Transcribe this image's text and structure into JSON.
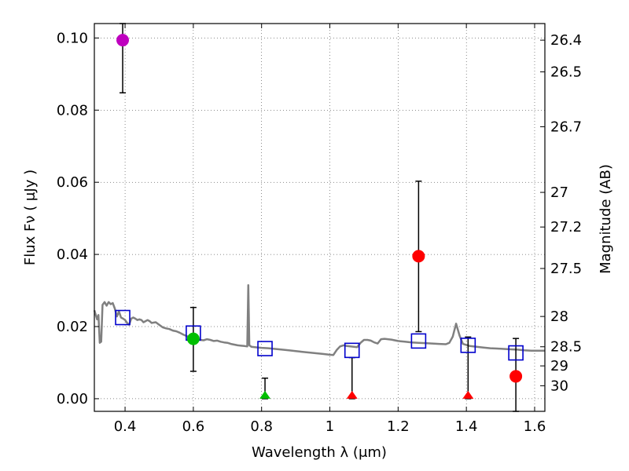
{
  "chart_data": {
    "type": "scatter",
    "xlabel": "Wavelength  λ (μm)",
    "ylabel": "Flux  Fν  ( μJy )",
    "y2label": "Magnitude (AB)",
    "xlim": [
      0.31,
      1.63
    ],
    "ylim": [
      -0.0035,
      0.104
    ],
    "grid": true,
    "x_ticks": [
      0.4,
      0.6,
      0.8,
      1.0,
      1.2,
      1.4,
      1.6
    ],
    "x_tick_labels": [
      "0.4",
      "0.6",
      "0.8",
      "1",
      "1.2",
      "1.4",
      "1.6"
    ],
    "y_ticks": [
      0.0,
      0.02,
      0.04,
      0.06,
      0.08,
      0.1
    ],
    "y_tick_labels": [
      "0.00",
      "0.02",
      "0.04",
      "0.06",
      "0.08",
      "0.10"
    ],
    "mag_ticks": [
      {
        "label": "26.4",
        "flux": 0.0994
      },
      {
        "label": "26.5",
        "flux": 0.0906
      },
      {
        "label": "26.7",
        "flux": 0.0754
      },
      {
        "label": "27",
        "flux": 0.0572
      },
      {
        "label": "27.2",
        "flux": 0.0476
      },
      {
        "label": "27.5",
        "flux": 0.0361
      },
      {
        "label": "28",
        "flux": 0.0228
      },
      {
        "label": "28.5",
        "flux": 0.0144
      },
      {
        "label": "29",
        "flux": 0.0091
      },
      {
        "label": "30",
        "flux": 0.0036
      }
    ],
    "model_spectrum": [
      [
        0.31,
        0.0245
      ],
      [
        0.318,
        0.022
      ],
      [
        0.322,
        0.0232
      ],
      [
        0.326,
        0.0155
      ],
      [
        0.33,
        0.0158
      ],
      [
        0.334,
        0.026
      ],
      [
        0.34,
        0.0268
      ],
      [
        0.346,
        0.0258
      ],
      [
        0.352,
        0.0268
      ],
      [
        0.358,
        0.0262
      ],
      [
        0.364,
        0.0265
      ],
      [
        0.37,
        0.025
      ],
      [
        0.376,
        0.0228
      ],
      [
        0.382,
        0.0242
      ],
      [
        0.388,
        0.0225
      ],
      [
        0.394,
        0.0222
      ],
      [
        0.4,
        0.0218
      ],
      [
        0.406,
        0.021
      ],
      [
        0.412,
        0.0205
      ],
      [
        0.418,
        0.0222
      ],
      [
        0.424,
        0.0225
      ],
      [
        0.43,
        0.0222
      ],
      [
        0.436,
        0.0218
      ],
      [
        0.442,
        0.022
      ],
      [
        0.448,
        0.0218
      ],
      [
        0.454,
        0.0212
      ],
      [
        0.46,
        0.0215
      ],
      [
        0.466,
        0.0218
      ],
      [
        0.472,
        0.0215
      ],
      [
        0.478,
        0.021
      ],
      [
        0.49,
        0.0212
      ],
      [
        0.5,
        0.0205
      ],
      [
        0.51,
        0.0198
      ],
      [
        0.52,
        0.0195
      ],
      [
        0.53,
        0.0193
      ],
      [
        0.54,
        0.0189
      ],
      [
        0.55,
        0.0187
      ],
      [
        0.56,
        0.0183
      ],
      [
        0.57,
        0.0178
      ],
      [
        0.58,
        0.0174
      ],
      [
        0.59,
        0.017
      ],
      [
        0.6,
        0.0166
      ],
      [
        0.61,
        0.0165
      ],
      [
        0.62,
        0.0163
      ],
      [
        0.63,
        0.0162
      ],
      [
        0.64,
        0.0165
      ],
      [
        0.65,
        0.0163
      ],
      [
        0.66,
        0.016
      ],
      [
        0.67,
        0.0161
      ],
      [
        0.68,
        0.0158
      ],
      [
        0.69,
        0.0156
      ],
      [
        0.7,
        0.0155
      ],
      [
        0.71,
        0.0152
      ],
      [
        0.72,
        0.015
      ],
      [
        0.73,
        0.0148
      ],
      [
        0.74,
        0.0147
      ],
      [
        0.75,
        0.0146
      ],
      [
        0.758,
        0.0145
      ],
      [
        0.761,
        0.0315
      ],
      [
        0.764,
        0.0148
      ],
      [
        0.77,
        0.0144
      ],
      [
        0.78,
        0.0143
      ],
      [
        0.79,
        0.0142
      ],
      [
        0.8,
        0.0141
      ],
      [
        0.82,
        0.014
      ],
      [
        0.84,
        0.0138
      ],
      [
        0.86,
        0.0136
      ],
      [
        0.88,
        0.0134
      ],
      [
        0.9,
        0.0132
      ],
      [
        0.92,
        0.013
      ],
      [
        0.94,
        0.0128
      ],
      [
        0.96,
        0.0126
      ],
      [
        0.98,
        0.0124
      ],
      [
        1.0,
        0.0122
      ],
      [
        1.01,
        0.0121
      ],
      [
        1.02,
        0.0135
      ],
      [
        1.03,
        0.0145
      ],
      [
        1.04,
        0.0148
      ],
      [
        1.05,
        0.0146
      ],
      [
        1.06,
        0.0145
      ],
      [
        1.07,
        0.0144
      ],
      [
        1.08,
        0.0143
      ],
      [
        1.09,
        0.0155
      ],
      [
        1.1,
        0.0163
      ],
      [
        1.11,
        0.0163
      ],
      [
        1.12,
        0.0161
      ],
      [
        1.13,
        0.0156
      ],
      [
        1.14,
        0.0153
      ],
      [
        1.15,
        0.0165
      ],
      [
        1.16,
        0.0166
      ],
      [
        1.18,
        0.0164
      ],
      [
        1.2,
        0.016
      ],
      [
        1.22,
        0.0158
      ],
      [
        1.24,
        0.0156
      ],
      [
        1.26,
        0.0155
      ],
      [
        1.28,
        0.0154
      ],
      [
        1.3,
        0.0153
      ],
      [
        1.32,
        0.0152
      ],
      [
        1.34,
        0.0151
      ],
      [
        1.35,
        0.0155
      ],
      [
        1.36,
        0.0172
      ],
      [
        1.37,
        0.0208
      ],
      [
        1.38,
        0.0175
      ],
      [
        1.39,
        0.0152
      ],
      [
        1.41,
        0.0146
      ],
      [
        1.43,
        0.0144
      ],
      [
        1.45,
        0.0142
      ],
      [
        1.47,
        0.014
      ],
      [
        1.49,
        0.0139
      ],
      [
        1.51,
        0.0138
      ],
      [
        1.53,
        0.0137
      ],
      [
        1.55,
        0.0136
      ],
      [
        1.57,
        0.0134
      ],
      [
        1.59,
        0.0133
      ],
      [
        1.61,
        0.0133
      ],
      [
        1.63,
        0.0133
      ]
    ],
    "model_photometry": [
      {
        "x": 0.393,
        "y": 0.0225
      },
      {
        "x": 0.6,
        "y": 0.0182
      },
      {
        "x": 0.81,
        "y": 0.0139
      },
      {
        "x": 1.065,
        "y": 0.0134
      },
      {
        "x": 1.26,
        "y": 0.016
      },
      {
        "x": 1.405,
        "y": 0.0148
      },
      {
        "x": 1.545,
        "y": 0.0127
      }
    ],
    "observations": [
      {
        "x": 0.393,
        "y": 0.0994,
        "yerr_low": 0.0848,
        "yerr_high": 0.1042,
        "marker": "circle",
        "color": "#bf00bf"
      },
      {
        "x": 0.6,
        "y": 0.0166,
        "yerr_low": 0.0076,
        "yerr_high": 0.0253,
        "marker": "circle",
        "color": "#00bf00"
      },
      {
        "x": 0.81,
        "y": 0.0,
        "yerr_low": 0.0,
        "yerr_high": 0.0057,
        "marker": "triangle",
        "color": "#00bf00"
      },
      {
        "x": 1.065,
        "y": 0.0,
        "yerr_low": 0.0,
        "yerr_high": 0.0114,
        "marker": "triangle",
        "color": "#ff0000"
      },
      {
        "x": 1.26,
        "y": 0.0395,
        "yerr_low": 0.0186,
        "yerr_high": 0.0603,
        "marker": "circle",
        "color": "#ff0000"
      },
      {
        "x": 1.405,
        "y": 0.0,
        "yerr_low": 0.0,
        "yerr_high": 0.0171,
        "marker": "triangle",
        "color": "#ff0000"
      },
      {
        "x": 1.545,
        "y": 0.0062,
        "yerr_low": -0.0035,
        "yerr_high": 0.0167,
        "marker": "circle",
        "color": "#ff0000"
      }
    ],
    "colors": {
      "spectrum": "#808080",
      "model_box": "#0000cc",
      "errorbar": "#000000"
    }
  }
}
